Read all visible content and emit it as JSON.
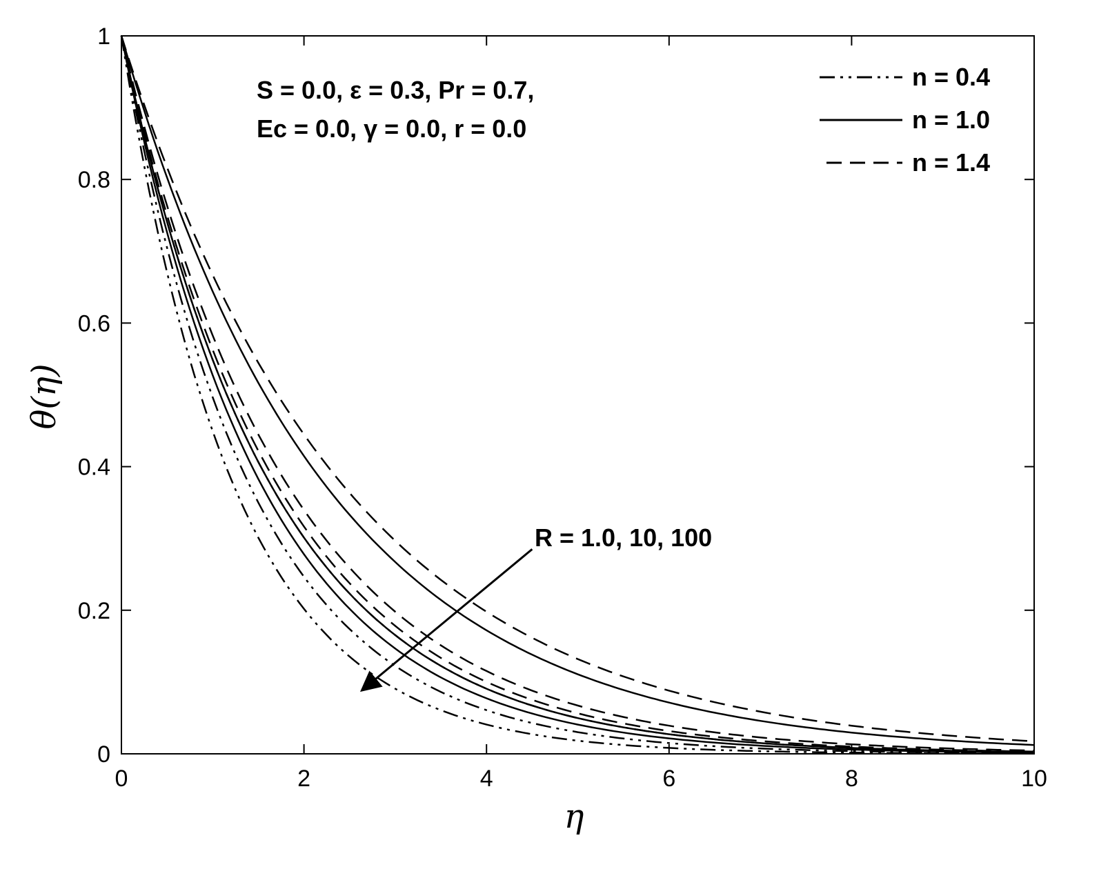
{
  "chart_data": {
    "type": "line",
    "title": "",
    "xlabel": "η",
    "ylabel": "θ(η)",
    "xlim": [
      0,
      10
    ],
    "ylim": [
      0,
      1
    ],
    "x_ticks": [
      "0",
      "2",
      "4",
      "6",
      "8",
      "10"
    ],
    "y_ticks": [
      "0",
      "0.2",
      "0.4",
      "0.6",
      "0.8",
      "1"
    ],
    "grid": false,
    "legend_position": "top-right",
    "legend": [
      {
        "label": "n = 0.4",
        "style": "dashdot"
      },
      {
        "label": "n = 1.0",
        "style": "solid"
      },
      {
        "label": "n = 1.4",
        "style": "dashed"
      }
    ],
    "params_text": [
      "S = 0.0, ε = 0.3, Pr = 0.7,",
      "Ec = 0.0, γ = 0.0, r = 0.0"
    ],
    "arrow_annotation": {
      "text": "R = 1.0, 10, 100",
      "from": [
        4.5,
        0.285
      ],
      "to": [
        2.65,
        0.09
      ]
    },
    "series": [
      {
        "n": 0.4,
        "R": 1.0,
        "style": "dashdot",
        "decay": 0.6
      },
      {
        "n": 0.4,
        "R": 10,
        "style": "dashdot",
        "decay": 0.7
      },
      {
        "n": 0.4,
        "R": 100,
        "style": "dashdot",
        "decay": 0.8
      },
      {
        "n": 1.0,
        "R": 1.0,
        "style": "solid",
        "decay": 0.44
      },
      {
        "n": 1.0,
        "R": 10,
        "style": "solid",
        "decay": 0.6
      },
      {
        "n": 1.0,
        "R": 100,
        "style": "solid",
        "decay": 0.64
      },
      {
        "n": 1.4,
        "R": 1.0,
        "style": "dashed",
        "decay": 0.405
      },
      {
        "n": 1.4,
        "R": 10,
        "style": "dashed",
        "decay": 0.54
      },
      {
        "n": 1.4,
        "R": 100,
        "style": "dashed",
        "decay": 0.575
      }
    ]
  }
}
